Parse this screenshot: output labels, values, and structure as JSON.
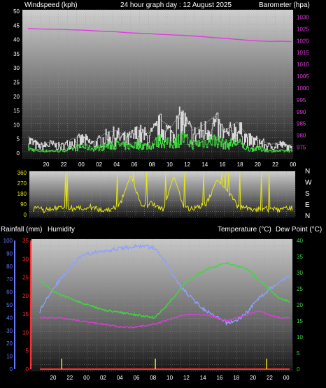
{
  "header": {
    "left_label": "Windspeed (kph)",
    "center_label": "24 hour graph day : 12 August 2025",
    "right_label": "Barometer (hpa)"
  },
  "time_ticks": [
    "20",
    "22",
    "00",
    "02",
    "04",
    "06",
    "08",
    "10",
    "12",
    "14",
    "16",
    "18",
    "20",
    "22",
    "00"
  ],
  "colors": {
    "background": "#000000",
    "barometer": "#e23be0",
    "wind_gust": "#d8d8d8",
    "wind_avg": "#3fd93f",
    "direction": "#e8e814",
    "temperature": "#3fd93f",
    "dew_point": "#e23be0",
    "humidity": "#8fa0ff",
    "rainfall": "#ff3030",
    "rain_bars": "#e8e814",
    "left_axis_wind": "#ffffff",
    "humidity_axis": "#6a78ff"
  },
  "chart_data": [
    {
      "type": "line",
      "panel": "wind_barometer",
      "xlabel": "",
      "y_left": {
        "label": "Windspeed (kph)",
        "range": [
          0,
          50
        ],
        "ticks": [
          "0",
          "5",
          "10",
          "15",
          "20",
          "25",
          "30",
          "35",
          "40",
          "45",
          "50"
        ]
      },
      "y_right": {
        "label": "Barometer (hpa)",
        "range": [
          972.5,
          1032.5
        ],
        "ticks": [
          "975",
          "980",
          "985",
          "990",
          "995",
          "1000",
          "1005",
          "1010",
          "1015",
          "1020",
          "1025",
          "1030"
        ]
      },
      "series": [
        {
          "name": "Barometer",
          "axis": "right",
          "x": [
            0,
            1,
            2,
            3,
            4,
            5,
            6,
            7,
            8,
            9,
            10,
            11,
            12,
            13,
            14,
            15,
            16,
            17,
            18,
            19,
            20,
            21,
            22,
            23,
            24
          ],
          "values": [
            1025.2,
            1025.0,
            1024.9,
            1024.8,
            1024.6,
            1024.5,
            1024.2,
            1024.0,
            1023.8,
            1023.4,
            1023.2,
            1023.0,
            1022.7,
            1022.5,
            1022.3,
            1022.0,
            1021.7,
            1021.3,
            1021.0,
            1020.6,
            1020.2,
            1019.9,
            1019.7,
            1019.8,
            1019.6
          ]
        },
        {
          "name": "Wind Gust",
          "axis": "left",
          "x": [
            0,
            1,
            2,
            3,
            4,
            5,
            6,
            7,
            8,
            9,
            10,
            11,
            12,
            13,
            14,
            15,
            16,
            17,
            18,
            19,
            20,
            21,
            22,
            23,
            24
          ],
          "values": [
            6,
            3,
            4,
            3,
            5,
            6,
            4,
            7,
            8,
            6,
            9,
            7,
            12,
            9,
            15,
            8,
            10,
            13,
            8,
            11,
            6,
            5,
            3,
            4,
            2
          ]
        },
        {
          "name": "Wind Avg",
          "axis": "left",
          "x": [
            0,
            1,
            2,
            3,
            4,
            5,
            6,
            7,
            8,
            9,
            10,
            11,
            12,
            13,
            14,
            15,
            16,
            17,
            18,
            19,
            20,
            21,
            22,
            23,
            24
          ],
          "values": [
            2,
            1,
            1,
            1,
            2,
            3,
            2,
            3,
            4,
            3,
            4,
            3,
            6,
            4,
            7,
            4,
            5,
            6,
            4,
            5,
            2,
            2,
            1,
            1,
            1
          ]
        }
      ]
    },
    {
      "type": "scatter",
      "panel": "wind_direction",
      "y_left": {
        "range": [
          0,
          360
        ],
        "ticks": [
          "0",
          "90",
          "180",
          "270",
          "360"
        ]
      },
      "y_right_labels": [
        "N",
        "W",
        "S",
        "E",
        "N"
      ],
      "series": [
        {
          "name": "Wind Direction",
          "x": [
            0,
            1,
            2,
            3,
            4,
            5,
            6,
            7,
            8,
            9,
            10,
            11,
            12,
            13,
            14,
            15,
            16,
            17,
            18,
            19,
            20,
            21,
            22,
            23,
            24
          ],
          "values": [
            50,
            40,
            55,
            60,
            45,
            70,
            50,
            40,
            80,
            340,
            60,
            100,
            45,
            330,
            60,
            50,
            90,
            300,
            200,
            60,
            55,
            45,
            50,
            40,
            60
          ]
        }
      ]
    },
    {
      "type": "line",
      "panel": "temperature_humidity_rain",
      "axes": {
        "humidity": {
          "label": "Humidity",
          "range": [
            0,
            100
          ],
          "ticks": [
            "0",
            "10",
            "20",
            "30",
            "40",
            "50",
            "60",
            "70",
            "80",
            "90",
            "100"
          ]
        },
        "rainfall": {
          "label": "Rainfall (mm)",
          "range": [
            0,
            35
          ],
          "ticks": [
            "0",
            "5",
            "10",
            "15",
            "20",
            "25",
            "30",
            "35"
          ]
        },
        "temperature": {
          "label": "Temperature (°C)",
          "range": [
            0,
            40
          ],
          "ticks": [
            "0",
            "5",
            "10",
            "15",
            "20",
            "25",
            "30",
            "35",
            "40"
          ]
        },
        "dew_point": {
          "label": "Dew Point (°C)"
        }
      },
      "series": [
        {
          "name": "Temperature",
          "axis": "temperature",
          "x": [
            0,
            1,
            2,
            3,
            4,
            5,
            6,
            7,
            8,
            9,
            10,
            11,
            12,
            13,
            14,
            15,
            16,
            17,
            18,
            19,
            20,
            21,
            22,
            23,
            24
          ],
          "values": [
            28,
            25,
            23,
            22,
            20.5,
            19.5,
            18.5,
            18,
            17.5,
            17,
            16.5,
            16,
            19,
            23,
            27,
            29,
            31,
            32,
            33,
            32,
            31,
            28,
            25,
            22,
            21
          ]
        },
        {
          "name": "Dew Point",
          "axis": "temperature",
          "x": [
            0,
            1,
            2,
            3,
            4,
            5,
            6,
            7,
            8,
            9,
            10,
            11,
            12,
            13,
            14,
            15,
            16,
            17,
            18,
            19,
            20,
            21,
            22,
            23,
            24
          ],
          "values": [
            16,
            16,
            16,
            15.5,
            15,
            14.5,
            14,
            13.5,
            13,
            13,
            13.5,
            14,
            15,
            16,
            17,
            17,
            17,
            16,
            15,
            16,
            17,
            18,
            17,
            16,
            16
          ]
        },
        {
          "name": "Humidity",
          "axis": "humidity",
          "x": [
            0,
            1,
            2,
            3,
            4,
            5,
            6,
            7,
            8,
            9,
            10,
            11,
            12,
            13,
            14,
            15,
            16,
            17,
            18,
            19,
            20,
            21,
            22,
            23,
            24
          ],
          "values": [
            45,
            60,
            70,
            80,
            88,
            90,
            92,
            93,
            94,
            95,
            96,
            94,
            85,
            70,
            60,
            52,
            45,
            40,
            36,
            38,
            45,
            55,
            62,
            68,
            73
          ]
        },
        {
          "name": "Rainfall",
          "axis": "rainfall",
          "x": [
            0,
            1,
            2,
            3,
            4,
            5,
            6,
            7,
            8,
            9,
            10,
            11,
            12,
            13,
            14,
            15,
            16,
            17,
            18,
            19,
            20,
            21,
            22,
            23,
            24
          ],
          "values": [
            0,
            0,
            0,
            0,
            0,
            0,
            0,
            0,
            0,
            0,
            0,
            0,
            0,
            0,
            0,
            0,
            0,
            0,
            0,
            0,
            0,
            0,
            0,
            0,
            0
          ]
        }
      ]
    }
  ]
}
